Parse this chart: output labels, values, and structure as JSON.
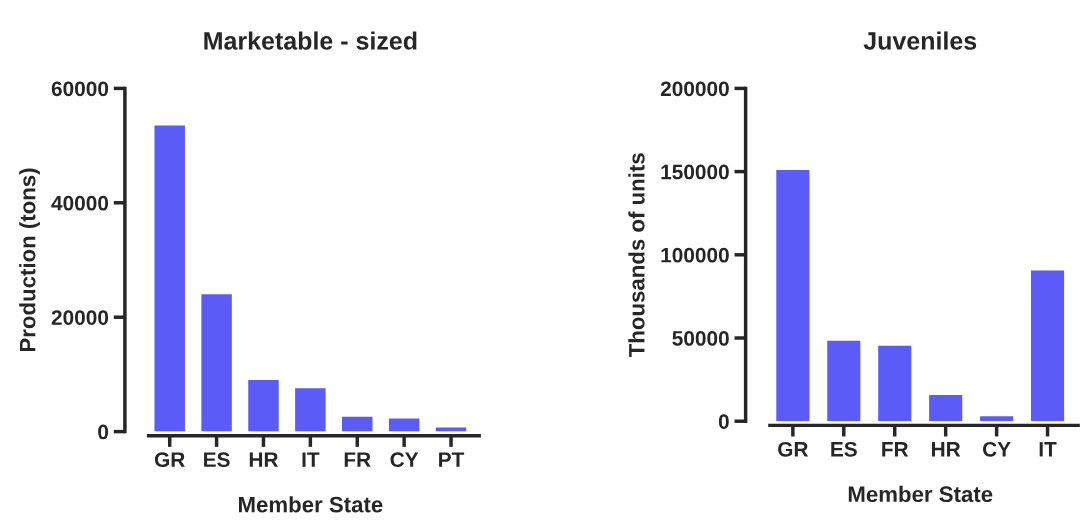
{
  "chart_data": [
    {
      "type": "bar",
      "title": "Marketable - sized",
      "xlabel": "Member State",
      "ylabel": "Production (tons)",
      "categories": [
        "GR",
        "ES",
        "HR",
        "IT",
        "FR",
        "CY",
        "PT"
      ],
      "values": [
        53500,
        24000,
        9000,
        7600,
        2600,
        2300,
        700
      ],
      "color": "#5b5bf7",
      "ylim": [
        0,
        60000
      ],
      "yticks": [
        0,
        20000,
        40000,
        60000
      ],
      "grid": false
    },
    {
      "type": "bar",
      "title": "Juveniles",
      "xlabel": "Member State",
      "ylabel": "Thousands of units",
      "categories": [
        "GR",
        "ES",
        "FR",
        "HR",
        "CY",
        "IT"
      ],
      "values": [
        151000,
        48300,
        45300,
        15700,
        3000,
        90600
      ],
      "color": "#5b5bf7",
      "ylim": [
        0,
        200000
      ],
      "yticks": [
        0,
        50000,
        100000,
        150000,
        200000
      ],
      "grid": false
    }
  ]
}
